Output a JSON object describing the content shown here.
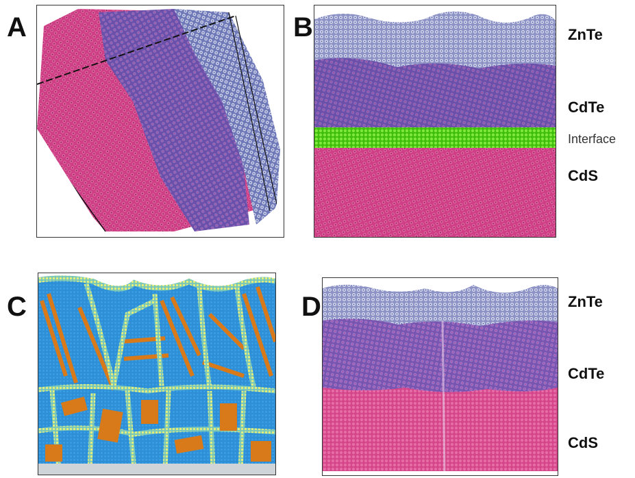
{
  "figure": {
    "panels": {
      "a": {
        "letter": "A"
      },
      "b": {
        "letter": "B",
        "labels": {
          "top": "ZnTe",
          "middle": "CdTe",
          "interface": "Interface",
          "bottom": "CdS"
        }
      },
      "c": {
        "letter": "C"
      },
      "d": {
        "letter": "D",
        "labels": {
          "top": "ZnTe",
          "middle": "CdTe",
          "bottom": "CdS"
        }
      }
    },
    "colors": {
      "zinc_telluride": "#b9bfdc",
      "cadmium_telluride": "#6b4fa8",
      "cadmium_sulfide": "#cf3f86",
      "interface": "#5fd61e",
      "grain": "#2f8fd6",
      "twin": "#d97a1a",
      "boundary": "#9fd9a8"
    }
  }
}
